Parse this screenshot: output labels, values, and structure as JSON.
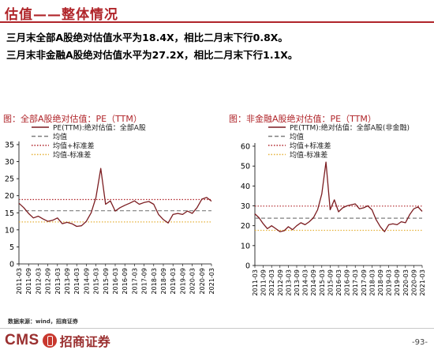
{
  "page": {
    "title": "估值——整体情况",
    "bullets": [
      "三月末全部A股绝对估值水平为18.4X，相比二月末下行0.8X。",
      "三月末非金融A股绝对估值水平为27.2X，相比二月末下行1.1X。"
    ],
    "source": "数据来源：wind，招商证券",
    "logo_cms": "CMS",
    "logo_cn": "招商证券",
    "page_number": "-93-"
  },
  "colors": {
    "accent": "#b0252a",
    "pe_line": "#7b1c20",
    "mean_line": "#7f7f7f",
    "plus_line": "#b0252a",
    "minus_line": "#e6b23a"
  },
  "chart_data": [
    {
      "type": "line",
      "title": "图：全部A股绝对估值：PE（TTM）",
      "legend": [
        "PE(TTM):绝对估值：全部A股",
        "均值",
        "均值+标准差",
        "均值-标准差"
      ],
      "ylim": [
        0,
        35
      ],
      "yticks": [
        0,
        5,
        10,
        15,
        20,
        25,
        30,
        35
      ],
      "xticks": [
        "2011-03",
        "2011-09",
        "2012-03",
        "2012-09",
        "2013-03",
        "2013-09",
        "2014-03",
        "2014-09",
        "2015-03",
        "2015-09",
        "2016-03",
        "2016-09",
        "2017-03",
        "2017-09",
        "2018-03",
        "2018-09",
        "2019-03",
        "2019-09",
        "2020-03",
        "2020-09",
        "2021-03"
      ],
      "x": [
        "2011-03",
        "2011-06",
        "2011-09",
        "2011-12",
        "2012-03",
        "2012-06",
        "2012-09",
        "2012-12",
        "2013-03",
        "2013-06",
        "2013-09",
        "2013-12",
        "2014-03",
        "2014-06",
        "2014-09",
        "2014-12",
        "2015-03",
        "2015-06",
        "2015-09",
        "2015-12",
        "2016-03",
        "2016-06",
        "2016-09",
        "2016-12",
        "2017-03",
        "2017-06",
        "2017-09",
        "2017-12",
        "2018-03",
        "2018-06",
        "2018-09",
        "2018-12",
        "2019-03",
        "2019-06",
        "2019-09",
        "2019-12",
        "2020-03",
        "2020-06",
        "2020-09",
        "2020-12",
        "2021-03"
      ],
      "series": [
        {
          "name": "PE(TTM):绝对估值：全部A股",
          "values": [
            17.8,
            16.5,
            14.8,
            13.5,
            14.0,
            13.2,
            12.5,
            12.8,
            13.5,
            11.8,
            12.2,
            11.8,
            11.0,
            11.2,
            12.5,
            15.0,
            19.5,
            28.0,
            17.5,
            18.5,
            15.5,
            16.5,
            17.2,
            17.8,
            18.5,
            17.5,
            18.0,
            18.3,
            17.5,
            14.5,
            13.0,
            12.0,
            14.5,
            14.8,
            14.5,
            15.5,
            14.8,
            16.5,
            19.0,
            19.5,
            18.4
          ]
        },
        {
          "name": "均值",
          "values": [
            15.6,
            15.6,
            15.6,
            15.6,
            15.6,
            15.6,
            15.6,
            15.6,
            15.6,
            15.6,
            15.6,
            15.6,
            15.6,
            15.6,
            15.6,
            15.6,
            15.6,
            15.6,
            15.6,
            15.6,
            15.6,
            15.6,
            15.6,
            15.6,
            15.6,
            15.6,
            15.6,
            15.6,
            15.6,
            15.6,
            15.6,
            15.6,
            15.6,
            15.6,
            15.6,
            15.6,
            15.6,
            15.6,
            15.6,
            15.6,
            15.6
          ]
        },
        {
          "name": "均值+标准差",
          "values": [
            18.9,
            18.9,
            18.9,
            18.9,
            18.9,
            18.9,
            18.9,
            18.9,
            18.9,
            18.9,
            18.9,
            18.9,
            18.9,
            18.9,
            18.9,
            18.9,
            18.9,
            18.9,
            18.9,
            18.9,
            18.9,
            18.9,
            18.9,
            18.9,
            18.9,
            18.9,
            18.9,
            18.9,
            18.9,
            18.9,
            18.9,
            18.9,
            18.9,
            18.9,
            18.9,
            18.9,
            18.9,
            18.9,
            18.9,
            18.9,
            18.9
          ]
        },
        {
          "name": "均值-标准差",
          "values": [
            12.3,
            12.3,
            12.3,
            12.3,
            12.3,
            12.3,
            12.3,
            12.3,
            12.3,
            12.3,
            12.3,
            12.3,
            12.3,
            12.3,
            12.3,
            12.3,
            12.3,
            12.3,
            12.3,
            12.3,
            12.3,
            12.3,
            12.3,
            12.3,
            12.3,
            12.3,
            12.3,
            12.3,
            12.3,
            12.3,
            12.3,
            12.3,
            12.3,
            12.3,
            12.3,
            12.3,
            12.3,
            12.3,
            12.3,
            12.3,
            12.3
          ]
        }
      ]
    },
    {
      "type": "line",
      "title": "图：非金融A股绝对估值：PE（TTM）",
      "legend": [
        "PE(TTM):绝对估值：全部A股(非金融)",
        "均值",
        "均值+标准差",
        "均值-标准差"
      ],
      "ylim": [
        0,
        60
      ],
      "yticks": [
        0,
        10,
        20,
        30,
        40,
        50,
        60
      ],
      "xticks": [
        "2011-03",
        "2011-09",
        "2012-03",
        "2012-09",
        "2013-03",
        "2013-09",
        "2014-03",
        "2014-09",
        "2015-03",
        "2015-09",
        "2016-03",
        "2016-09",
        "2017-03",
        "2017-09",
        "2018-03",
        "2018-09",
        "2019-03",
        "2019-09",
        "2020-03",
        "2020-09",
        "2021-03"
      ],
      "x": [
        "2011-03",
        "2011-06",
        "2011-09",
        "2011-12",
        "2012-03",
        "2012-06",
        "2012-09",
        "2012-12",
        "2013-03",
        "2013-06",
        "2013-09",
        "2013-12",
        "2014-03",
        "2014-06",
        "2014-09",
        "2014-12",
        "2015-03",
        "2015-06",
        "2015-09",
        "2015-12",
        "2016-03",
        "2016-06",
        "2016-09",
        "2016-12",
        "2017-03",
        "2017-06",
        "2017-09",
        "2017-12",
        "2018-03",
        "2018-06",
        "2018-09",
        "2018-12",
        "2019-03",
        "2019-06",
        "2019-09",
        "2019-12",
        "2020-03",
        "2020-06",
        "2020-09",
        "2020-12",
        "2021-03"
      ],
      "series": [
        {
          "name": "PE(TTM):绝对估值：全部A股(非金融)",
          "values": [
            26.0,
            24.0,
            21.0,
            18.5,
            20.0,
            18.5,
            17.0,
            17.5,
            19.5,
            18.0,
            20.0,
            21.5,
            20.5,
            22.0,
            24.0,
            28.0,
            36.0,
            52.0,
            28.0,
            33.0,
            27.0,
            29.0,
            30.0,
            30.5,
            31.0,
            28.5,
            29.0,
            30.0,
            28.0,
            23.0,
            19.5,
            17.0,
            20.5,
            21.0,
            20.5,
            22.0,
            21.5,
            25.5,
            28.5,
            29.5,
            27.2
          ]
        },
        {
          "name": "均值",
          "values": [
            23.8,
            23.8,
            23.8,
            23.8,
            23.8,
            23.8,
            23.8,
            23.8,
            23.8,
            23.8,
            23.8,
            23.8,
            23.8,
            23.8,
            23.8,
            23.8,
            23.8,
            23.8,
            23.8,
            23.8,
            23.8,
            23.8,
            23.8,
            23.8,
            23.8,
            23.8,
            23.8,
            23.8,
            23.8,
            23.8,
            23.8,
            23.8,
            23.8,
            23.8,
            23.8,
            23.8,
            23.8,
            23.8,
            23.8,
            23.8,
            23.8
          ]
        },
        {
          "name": "均值+标准差",
          "values": [
            29.9,
            29.9,
            29.9,
            29.9,
            29.9,
            29.9,
            29.9,
            29.9,
            29.9,
            29.9,
            29.9,
            29.9,
            29.9,
            29.9,
            29.9,
            29.9,
            29.9,
            29.9,
            29.9,
            29.9,
            29.9,
            29.9,
            29.9,
            29.9,
            29.9,
            29.9,
            29.9,
            29.9,
            29.9,
            29.9,
            29.9,
            29.9,
            29.9,
            29.9,
            29.9,
            29.9,
            29.9,
            29.9,
            29.9,
            29.9,
            29.9
          ]
        },
        {
          "name": "均值-标准差",
          "values": [
            17.7,
            17.7,
            17.7,
            17.7,
            17.7,
            17.7,
            17.7,
            17.7,
            17.7,
            17.7,
            17.7,
            17.7,
            17.7,
            17.7,
            17.7,
            17.7,
            17.7,
            17.7,
            17.7,
            17.7,
            17.7,
            17.7,
            17.7,
            17.7,
            17.7,
            17.7,
            17.7,
            17.7,
            17.7,
            17.7,
            17.7,
            17.7,
            17.7,
            17.7,
            17.7,
            17.7,
            17.7,
            17.7,
            17.7,
            17.7,
            17.7
          ]
        }
      ]
    }
  ]
}
